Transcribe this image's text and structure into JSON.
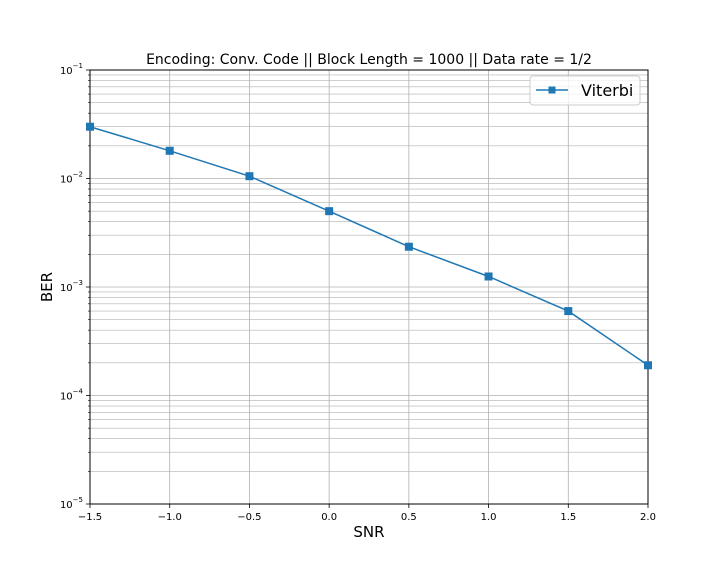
{
  "chart_data": {
    "type": "line",
    "title": "Encoding: Conv. Code || Block Length = 1000 || Data rate = 1/2",
    "xlabel": "SNR",
    "ylabel": "BER",
    "xlim": [
      -1.5,
      2.0
    ],
    "ylim": [
      1e-05,
      0.1
    ],
    "yscale": "log",
    "grid": true,
    "grid_minor": true,
    "legend_position": "top-right",
    "x_ticks": [
      "-1.5",
      "-1.0",
      "-0.5",
      "0.0",
      "0.5",
      "1.0",
      "1.5",
      "2.0"
    ],
    "y_ticks": [
      {
        "value": 1e-05,
        "base": "10",
        "exp": "−5"
      },
      {
        "value": 0.0001,
        "base": "10",
        "exp": "−4"
      },
      {
        "value": 0.001,
        "base": "10",
        "exp": "−3"
      },
      {
        "value": 0.01,
        "base": "10",
        "exp": "−2"
      },
      {
        "value": 0.1,
        "base": "10",
        "exp": "−1"
      }
    ],
    "series": [
      {
        "name": "Viterbi",
        "color": "#1f77b4",
        "marker": "square",
        "x": [
          -1.5,
          -1.0,
          -0.5,
          0.0,
          0.5,
          1.0,
          1.5,
          2.0
        ],
        "y": [
          0.03,
          0.018,
          0.0105,
          0.005,
          0.00235,
          0.00125,
          0.0006,
          0.00019
        ]
      }
    ]
  }
}
